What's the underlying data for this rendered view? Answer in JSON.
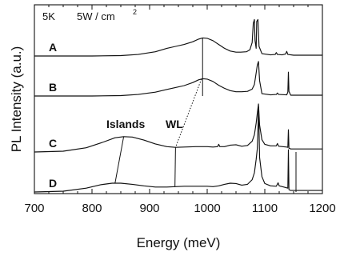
{
  "chart_data": {
    "type": "line",
    "xlabel": "Energy (meV)",
    "ylabel": "PL Intensity (a.u.)",
    "xlim": [
      700,
      1200
    ],
    "x_ticks": [
      "700",
      "800",
      "900",
      "1000",
      "1100",
      "1200"
    ],
    "y_ticks_shown": false,
    "condition": {
      "temperature": "5K",
      "power_density": "5W / cm",
      "power_exp": "2"
    },
    "series": [
      {
        "name": "A",
        "offset": 0.0,
        "points": [
          [
            700,
            0.0
          ],
          [
            800,
            0.0
          ],
          [
            850,
            0.01
          ],
          [
            880,
            0.04
          ],
          [
            910,
            0.11
          ],
          [
            930,
            0.2
          ],
          [
            945,
            0.25
          ],
          [
            960,
            0.3
          ],
          [
            975,
            0.37
          ],
          [
            985,
            0.44
          ],
          [
            992,
            0.47
          ],
          [
            1000,
            0.46
          ],
          [
            1010,
            0.4
          ],
          [
            1020,
            0.3
          ],
          [
            1030,
            0.2
          ],
          [
            1040,
            0.13
          ],
          [
            1050,
            0.1
          ],
          [
            1058,
            0.1
          ],
          [
            1068,
            0.11
          ],
          [
            1074,
            0.16
          ],
          [
            1078,
            0.35
          ],
          [
            1080,
            0.85
          ],
          [
            1082,
            0.95
          ],
          [
            1083,
            0.4
          ],
          [
            1085,
            0.2
          ],
          [
            1086,
            0.9
          ],
          [
            1088,
            0.95
          ],
          [
            1090,
            0.25
          ],
          [
            1095,
            0.06
          ],
          [
            1110,
            0.03
          ],
          [
            1118,
            0.04
          ],
          [
            1120,
            0.09
          ],
          [
            1122,
            0.04
          ],
          [
            1130,
            0.03
          ],
          [
            1136,
            0.05
          ],
          [
            1138,
            0.12
          ],
          [
            1140,
            0.04
          ],
          [
            1150,
            0.02
          ],
          [
            1200,
            0.02
          ]
        ]
      },
      {
        "name": "B",
        "offset": 1.0,
        "points": [
          [
            700,
            0.0
          ],
          [
            800,
            0.0
          ],
          [
            850,
            0.01
          ],
          [
            880,
            0.04
          ],
          [
            910,
            0.1
          ],
          [
            930,
            0.17
          ],
          [
            945,
            0.22
          ],
          [
            960,
            0.27
          ],
          [
            975,
            0.35
          ],
          [
            985,
            0.42
          ],
          [
            992,
            0.45
          ],
          [
            1000,
            0.44
          ],
          [
            1010,
            0.38
          ],
          [
            1020,
            0.28
          ],
          [
            1030,
            0.2
          ],
          [
            1040,
            0.14
          ],
          [
            1050,
            0.11
          ],
          [
            1060,
            0.11
          ],
          [
            1070,
            0.12
          ],
          [
            1078,
            0.18
          ],
          [
            1082,
            0.3
          ],
          [
            1085,
            0.6
          ],
          [
            1087,
            0.8
          ],
          [
            1089,
            0.9
          ],
          [
            1091,
            0.4
          ],
          [
            1095,
            0.06
          ],
          [
            1110,
            0.03
          ],
          [
            1120,
            0.04
          ],
          [
            1122,
            0.08
          ],
          [
            1124,
            0.04
          ],
          [
            1138,
            0.03
          ],
          [
            1140,
            0.1
          ],
          [
            1141,
            0.62
          ],
          [
            1142,
            0.12
          ],
          [
            1145,
            0.02
          ],
          [
            1200,
            0.02
          ]
        ]
      },
      {
        "name": "C",
        "offset": 2.0,
        "points": [
          [
            700,
            0.0
          ],
          [
            750,
            0.02
          ],
          [
            790,
            0.11
          ],
          [
            820,
            0.26
          ],
          [
            840,
            0.37
          ],
          [
            855,
            0.4
          ],
          [
            870,
            0.39
          ],
          [
            890,
            0.31
          ],
          [
            910,
            0.21
          ],
          [
            930,
            0.14
          ],
          [
            945,
            0.12
          ],
          [
            960,
            0.13
          ],
          [
            980,
            0.14
          ],
          [
            1000,
            0.14
          ],
          [
            1010,
            0.13
          ],
          [
            1018,
            0.14
          ],
          [
            1020,
            0.2
          ],
          [
            1022,
            0.14
          ],
          [
            1030,
            0.14
          ],
          [
            1040,
            0.18
          ],
          [
            1050,
            0.19
          ],
          [
            1060,
            0.15
          ],
          [
            1070,
            0.17
          ],
          [
            1078,
            0.28
          ],
          [
            1082,
            0.45
          ],
          [
            1085,
            0.75
          ],
          [
            1087,
            1.0
          ],
          [
            1089,
            1.25
          ],
          [
            1091,
            0.7
          ],
          [
            1095,
            0.32
          ],
          [
            1100,
            0.2
          ],
          [
            1110,
            0.16
          ],
          [
            1120,
            0.16
          ],
          [
            1122,
            0.22
          ],
          [
            1124,
            0.15
          ],
          [
            1138,
            0.13
          ],
          [
            1140,
            0.12
          ],
          [
            1141,
            0.58
          ],
          [
            1142,
            0.1
          ],
          [
            1145,
            0.08
          ],
          [
            1200,
            0.08
          ]
        ]
      },
      {
        "name": "D",
        "offset": 3.0,
        "points": [
          [
            700,
            0.0
          ],
          [
            750,
            0.02
          ],
          [
            790,
            0.1
          ],
          [
            815,
            0.19
          ],
          [
            835,
            0.23
          ],
          [
            850,
            0.23
          ],
          [
            870,
            0.2
          ],
          [
            890,
            0.16
          ],
          [
            910,
            0.13
          ],
          [
            930,
            0.13
          ],
          [
            945,
            0.14
          ],
          [
            960,
            0.15
          ],
          [
            980,
            0.15
          ],
          [
            1000,
            0.15
          ],
          [
            1010,
            0.14
          ],
          [
            1020,
            0.16
          ],
          [
            1030,
            0.2
          ],
          [
            1040,
            0.23
          ],
          [
            1050,
            0.22
          ],
          [
            1060,
            0.18
          ],
          [
            1070,
            0.2
          ],
          [
            1078,
            0.32
          ],
          [
            1082,
            0.5
          ],
          [
            1085,
            0.85
          ],
          [
            1087,
            1.12
          ],
          [
            1088,
            1.6
          ],
          [
            1089,
            2.2
          ],
          [
            1090,
            1.6
          ],
          [
            1091,
            0.9
          ],
          [
            1095,
            0.4
          ],
          [
            1100,
            0.22
          ],
          [
            1110,
            0.16
          ],
          [
            1120,
            0.15
          ],
          [
            1123,
            0.24
          ],
          [
            1125,
            0.16
          ],
          [
            1135,
            0.12
          ],
          [
            1140,
            0.1
          ],
          [
            1141,
            1.1
          ],
          [
            1142,
            0.06
          ],
          [
            1145,
            0.04
          ],
          [
            1200,
            0.04
          ]
        ]
      }
    ],
    "annotations": [
      {
        "text": "Islands"
      },
      {
        "text": "WL"
      }
    ],
    "grid": false,
    "legend": "none"
  }
}
